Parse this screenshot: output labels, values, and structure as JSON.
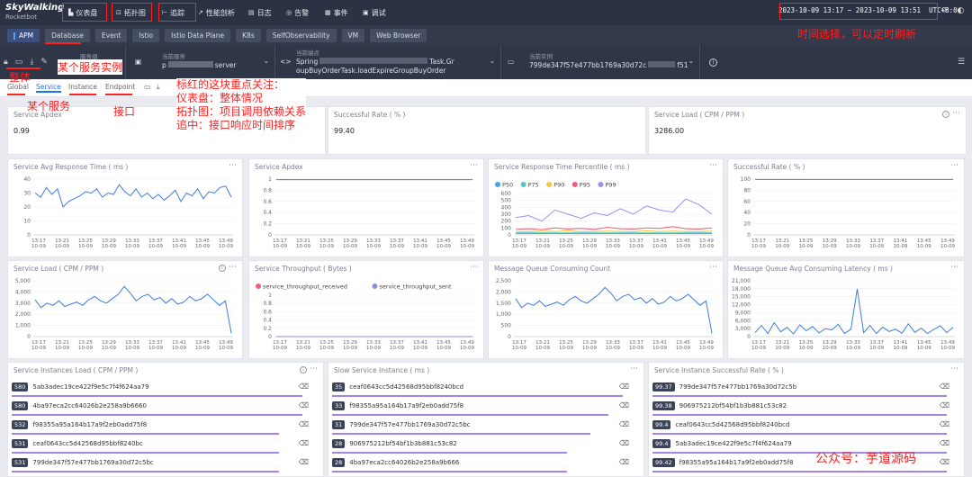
{
  "app": {
    "logo_line1": "SkyWalking",
    "logo_line2": "Rocketbot"
  },
  "nav": [
    {
      "icon": "dashboard-icon",
      "label": "仪表盘"
    },
    {
      "icon": "topology-icon",
      "label": "拓扑图"
    },
    {
      "icon": "trace-icon",
      "label": "追踪"
    },
    {
      "icon": "profiling-icon",
      "label": "性能剖析"
    },
    {
      "icon": "log-icon",
      "label": "日志"
    },
    {
      "icon": "alarm-icon",
      "label": "告警"
    },
    {
      "icon": "event-icon",
      "label": "事件"
    },
    {
      "icon": "debug-icon",
      "label": "调试"
    }
  ],
  "time": {
    "range": "2023-10-09 13:17 ~ 2023-10-09 13:51",
    "tz": "UTC+8:0"
  },
  "layers": [
    "APM",
    "Database",
    "Event",
    "Istio",
    "Istio Data Plane",
    "K8s",
    "SelfObservability",
    "VM",
    "Web Browser"
  ],
  "selectors": {
    "group_label": "服务组",
    "group_value": "p",
    "service_label": "当前服务",
    "service_value": "server",
    "endpoint_label": "当前端点",
    "endpoint_line1": "Spring",
    "endpoint_line1b": "Task.Gr",
    "endpoint_line2": "oupBuyOrderTask.loadExpireGroupBuyOrder",
    "instance_label": "当前实例",
    "instance_value": "799de347f57e477bb1769a30d72c",
    "instance_suffix": "f51"
  },
  "page_tabs": [
    "Global",
    "Service",
    "Instance",
    "Endpoint"
  ],
  "stat_panels": [
    {
      "title": "Service Apdex",
      "value": "0.99"
    },
    {
      "title": "Successful Rate ( % )",
      "value": "99.40"
    },
    {
      "title": "Service Load ( CPM / PPM )",
      "value": "3286.00"
    }
  ],
  "x_ticks": [
    {
      "t": "13:17",
      "d": "10-09"
    },
    {
      "t": "13:21",
      "d": "10-09"
    },
    {
      "t": "13:25",
      "d": "10-09"
    },
    {
      "t": "13:29",
      "d": "10-09"
    },
    {
      "t": "13:33",
      "d": "10-09"
    },
    {
      "t": "13:37",
      "d": "10-09"
    },
    {
      "t": "13:41",
      "d": "10-09"
    },
    {
      "t": "13:45",
      "d": "10-09"
    },
    {
      "t": "13:49",
      "d": "10-09"
    }
  ],
  "chart_data": [
    {
      "type": "line",
      "title": "Service Avg Response Time ( ms )",
      "ylim": [
        0,
        40
      ],
      "yticks": [
        "40",
        "30",
        "20",
        "10",
        "0"
      ],
      "series": [
        {
          "values": [
            30,
            27,
            34,
            29,
            33,
            20,
            24,
            26,
            28,
            31,
            30,
            33,
            27,
            30,
            29,
            36,
            31,
            28,
            33,
            27,
            30,
            26,
            29,
            25,
            28,
            32,
            24,
            30,
            28,
            33,
            26,
            31,
            30,
            34,
            35,
            27
          ]
        }
      ]
    },
    {
      "type": "line",
      "title": "Service Apdex",
      "ylim": [
        0,
        1
      ],
      "yticks": [
        "1",
        "0.8",
        "0.6",
        "0.4",
        "0.2",
        "0"
      ],
      "series": [
        {
          "values": [
            0.99,
            0.99,
            0.99,
            0.99,
            0.99,
            0.99,
            0.99,
            0.99,
            0.99,
            0.99,
            0.99,
            0.99,
            0.99,
            0.99,
            0.99,
            0.99,
            0.99,
            0.99,
            0.99,
            0.99
          ]
        }
      ]
    },
    {
      "type": "line",
      "title": "Service Response Time Percentile ( ms )",
      "ylim": [
        0,
        600
      ],
      "yticks": [
        "600",
        "500",
        "400",
        "300",
        "200",
        "100",
        "0"
      ],
      "legend": [
        "P50",
        "P75",
        "P90",
        "P95",
        "P99"
      ],
      "colors": [
        "#3fa7ee",
        "#4dc9c0",
        "#f7c443",
        "#ee5d78",
        "#9c8ef0"
      ],
      "series": [
        {
          "name": "P50",
          "values": [
            20,
            20,
            20,
            20,
            20,
            20,
            20,
            20,
            20,
            20,
            20,
            20,
            20,
            20,
            20,
            20
          ]
        },
        {
          "name": "P75",
          "values": [
            30,
            30,
            30,
            30,
            30,
            30,
            30,
            30,
            30,
            30,
            30,
            30,
            30,
            30,
            30,
            30
          ]
        },
        {
          "name": "P90",
          "values": [
            50,
            45,
            55,
            50,
            60,
            45,
            50,
            55,
            50,
            45,
            60,
            50,
            55,
            50,
            45,
            55
          ]
        },
        {
          "name": "P95",
          "values": [
            80,
            90,
            75,
            100,
            85,
            95,
            80,
            110,
            90,
            85,
            100,
            95,
            120,
            90,
            85,
            100
          ]
        },
        {
          "name": "P99",
          "values": [
            250,
            280,
            200,
            360,
            300,
            240,
            320,
            280,
            380,
            300,
            420,
            360,
            330,
            520,
            440,
            300
          ]
        }
      ]
    },
    {
      "type": "line",
      "title": "Successful Rate ( % )",
      "ylim": [
        0,
        100
      ],
      "yticks": [
        "100",
        "80",
        "60",
        "40",
        "20",
        "0"
      ],
      "series": [
        {
          "values": [
            99.4,
            99.4,
            99.4,
            99.4,
            99.4,
            99.4,
            99.4,
            99.4,
            99.4,
            99.4,
            99.4,
            99.4,
            99.4,
            99.4,
            99.4,
            99.4
          ]
        }
      ]
    },
    {
      "type": "line",
      "title": "Service Load ( CPM / PPM )",
      "ylim": [
        0,
        5000
      ],
      "yticks": [
        "5,000",
        "4,000",
        "3,000",
        "2,000",
        "1,000",
        "0"
      ],
      "series": [
        {
          "values": [
            3300,
            2600,
            3000,
            2800,
            3200,
            2700,
            2900,
            3100,
            2800,
            3300,
            3600,
            3200,
            3000,
            3400,
            3800,
            4500,
            3900,
            3200,
            3600,
            3800,
            3300,
            3500,
            3000,
            3400,
            2900,
            3100,
            3600,
            3200,
            3400,
            3800,
            3300,
            2800,
            3200,
            300
          ]
        }
      ]
    },
    {
      "type": "line",
      "title": "Service Throughput ( Bytes )",
      "ylim": [
        0,
        1
      ],
      "yticks": [
        "1",
        "0.8",
        "0.6",
        "0.4",
        "0.2",
        "0"
      ],
      "legend": [
        "service_throughput_received",
        "service_throughput_sent"
      ],
      "colors": [
        "#ee5d78",
        "#8a93d8"
      ],
      "series": [
        {
          "name": "service_throughput_received",
          "values": [
            0,
            0,
            0,
            0,
            0,
            0,
            0,
            0,
            0,
            0
          ]
        },
        {
          "name": "service_throughput_sent",
          "values": [
            0,
            0,
            0,
            0,
            0,
            0,
            0,
            0,
            0,
            0
          ]
        }
      ]
    },
    {
      "type": "line",
      "title": "Message Queue Consuming Count",
      "ylim": [
        0,
        2500
      ],
      "yticks": [
        "2,500",
        "2,000",
        "1,500",
        "1,000",
        "500",
        "0"
      ],
      "series": [
        {
          "values": [
            1700,
            1300,
            1500,
            1400,
            1600,
            1350,
            1450,
            1550,
            1400,
            1650,
            1800,
            1600,
            1500,
            1700,
            1900,
            2200,
            1950,
            1600,
            1800,
            1900,
            1650,
            1750,
            1500,
            1700,
            1450,
            1550,
            1800,
            1600,
            1700,
            1900,
            1650,
            1400,
            1600,
            150
          ]
        }
      ]
    },
    {
      "type": "line",
      "title": "Message Queue Avg Consuming Latency ( ms )",
      "ylim": [
        0,
        21000
      ],
      "yticks": [
        "21,000",
        "18,000",
        "15,000",
        "12,000",
        "9,000",
        "6,000",
        "3,000",
        "0"
      ],
      "series": [
        {
          "values": [
            1500,
            4200,
            1200,
            5200,
            1800,
            3500,
            1000,
            4400,
            2200,
            3800,
            1400,
            3000,
            2500,
            4600,
            1200,
            2800,
            18000,
            1500,
            4200,
            1200,
            3600,
            1900,
            2800,
            1300,
            4800,
            1600,
            3200,
            1200,
            2700,
            4100,
            1500,
            3500
          ]
        }
      ]
    }
  ],
  "list_panels": [
    {
      "title": "Service Instances Load ( CPM / PPM )",
      "rows": [
        {
          "v": "580",
          "id": "5ab3adec19ce422f9e5c7f4f624aa79",
          "pct": 0.98
        },
        {
          "v": "580",
          "id": "4ba97eca2cc64026b2e258a9b6660",
          "pct": 0.98
        },
        {
          "v": "532",
          "id": "f98355a95a164b17a9f2eb0add75f8",
          "pct": 0.9
        },
        {
          "v": "531",
          "id": "ceaf0643cc5d42568d95bbf8240bc",
          "pct": 0.9
        },
        {
          "v": "531",
          "id": "799de347f57e477bb1769a30d72c5bc",
          "pct": 0.9
        }
      ]
    },
    {
      "title": "Slow Service Instance ( ms )",
      "rows": [
        {
          "v": "35",
          "id": "ceaf0643cc5d42568d95bbf8240bcd",
          "pct": 0.98
        },
        {
          "v": "33",
          "id": "f98355a95a164b17a9f2eb0add75f8",
          "pct": 0.93
        },
        {
          "v": "31",
          "id": "799de347f57e477bb1769a30d72c5bc",
          "pct": 0.87
        },
        {
          "v": "28",
          "id": "906975212bf54bf1b3b881c53c82",
          "pct": 0.79
        },
        {
          "v": "28",
          "id": "4ba97eca2cc64026b2e258a9b666",
          "pct": 0.79
        }
      ]
    },
    {
      "title": "Service Instance Successful Rate ( % )",
      "rows": [
        {
          "v": "99.37",
          "id": "799de347f57e477bb1769a30d72c5b",
          "pct": 0.99
        },
        {
          "v": "99.38",
          "id": "906975212bf54bf1b3b881c53c82",
          "pct": 0.99
        },
        {
          "v": "99.4",
          "id": "ceaf0643cc5d42568d95bbf8240bcd",
          "pct": 0.99
        },
        {
          "v": "99.4",
          "id": "5ab3adec19ce422f9e5c7f4f624aa79",
          "pct": 0.99
        },
        {
          "v": "99.42",
          "id": "f98355a95a164b17a9f2eb0add75f8",
          "pct": 0.99
        }
      ]
    }
  ],
  "annotations": {
    "time": "时间选择，可以定时刷新",
    "instance": "某个服务实例",
    "global": "整体",
    "service": "某个服务",
    "endpoint": "接口",
    "note1": "标红的这块重点关注：",
    "note2": "仪表盘：整体情况",
    "note3": "拓扑图：项目调用依赖关系",
    "note4": "追中：接口响应时间排序",
    "watermark": "公众号：芋道源码"
  }
}
